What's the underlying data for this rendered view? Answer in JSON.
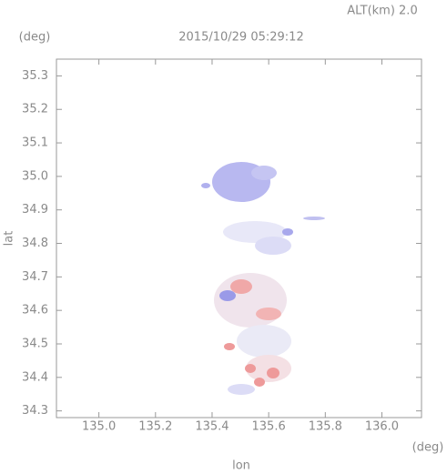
{
  "header": {
    "altitude": "ALT(km) 2.0",
    "unit_top": "(deg)"
  },
  "chart_data": {
    "type": "map",
    "title": "2015/10/29 05:29:12",
    "x_label": "lon",
    "x_unit": "(deg)",
    "y_label": "lat",
    "xlim": [
      134.85,
      136.14
    ],
    "ylim": [
      34.28,
      35.35
    ],
    "xticks": [
      {
        "value": 135,
        "label": "135.0"
      },
      135.2,
      135.4,
      135.6,
      135.8,
      {
        "value": 136,
        "label": "136.0"
      }
    ],
    "yticks": [
      35.3,
      35.2,
      35.1,
      {
        "value": 35,
        "label": "35.0"
      },
      34.9,
      34.8,
      34.7,
      34.6,
      34.5,
      34.4,
      34.3
    ],
    "grid": false,
    "color": "#999999"
  }
}
